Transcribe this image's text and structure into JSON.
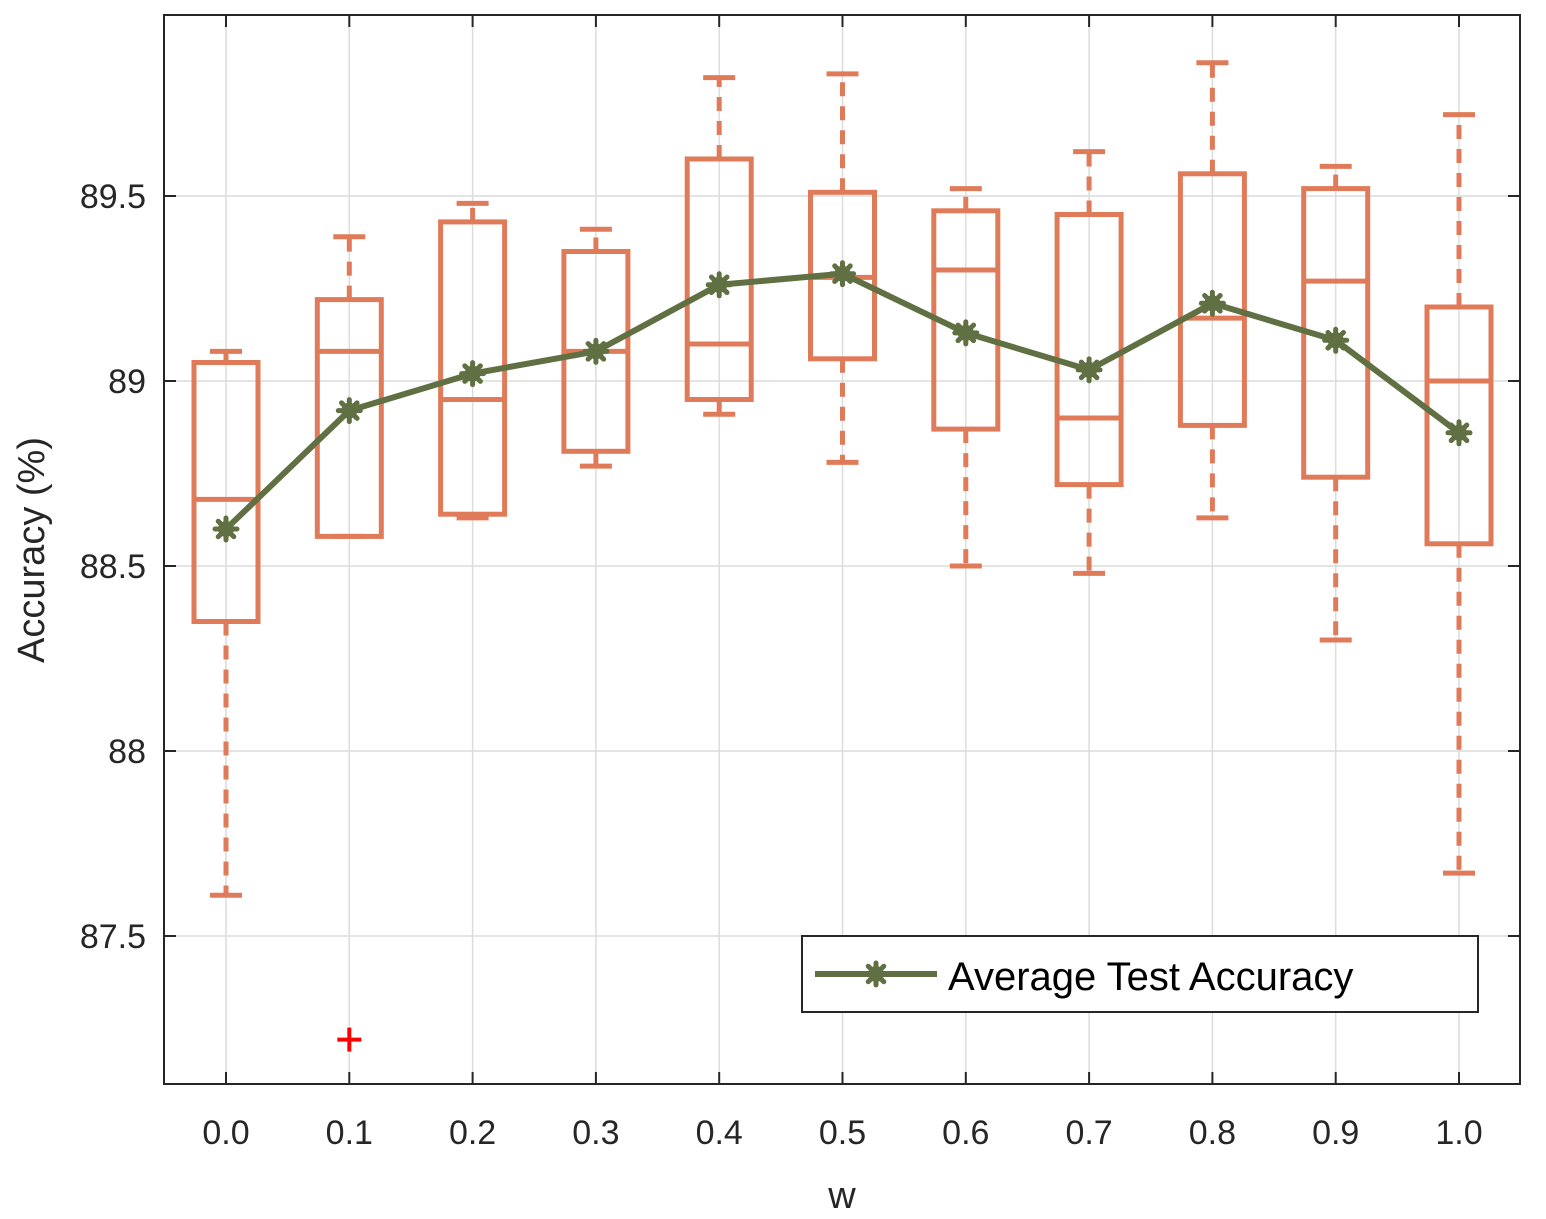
{
  "chart_data": {
    "type": "box",
    "xlabel": "w",
    "ylabel": "Accuracy (%)",
    "categories": [
      "0.0",
      "0.1",
      "0.2",
      "0.3",
      "0.4",
      "0.5",
      "0.6",
      "0.7",
      "0.8",
      "0.9",
      "1.0"
    ],
    "ylim": [
      87.13,
      90.0
    ],
    "yticks": [
      87.5,
      88,
      88.5,
      89,
      89.5
    ],
    "ytick_labels": [
      "87.5",
      "88",
      "88.5",
      "89",
      "89.5"
    ],
    "grid": true,
    "boxes": [
      {
        "category": "0.0",
        "whisker_low": 87.61,
        "q1": 88.35,
        "median": 88.68,
        "q3": 89.05,
        "whisker_high": 89.08,
        "outliers": []
      },
      {
        "category": "0.1",
        "whisker_low": 88.58,
        "q1": 88.58,
        "median": 89.08,
        "q3": 89.22,
        "whisker_high": 89.39,
        "outliers": [
          87.22
        ]
      },
      {
        "category": "0.2",
        "whisker_low": 88.63,
        "q1": 88.64,
        "median": 88.95,
        "q3": 89.43,
        "whisker_high": 89.48,
        "outliers": []
      },
      {
        "category": "0.3",
        "whisker_low": 88.77,
        "q1": 88.81,
        "median": 89.08,
        "q3": 89.35,
        "whisker_high": 89.41,
        "outliers": []
      },
      {
        "category": "0.4",
        "whisker_low": 88.91,
        "q1": 88.95,
        "median": 89.1,
        "q3": 89.6,
        "whisker_high": 89.82,
        "outliers": []
      },
      {
        "category": "0.5",
        "whisker_low": 88.78,
        "q1": 89.06,
        "median": 89.28,
        "q3": 89.51,
        "whisker_high": 89.83,
        "outliers": []
      },
      {
        "category": "0.6",
        "whisker_low": 88.5,
        "q1": 88.87,
        "median": 89.3,
        "q3": 89.46,
        "whisker_high": 89.52,
        "outliers": []
      },
      {
        "category": "0.7",
        "whisker_low": 88.48,
        "q1": 88.72,
        "median": 88.9,
        "q3": 89.45,
        "whisker_high": 89.62,
        "outliers": []
      },
      {
        "category": "0.8",
        "whisker_low": 88.63,
        "q1": 88.88,
        "median": 89.17,
        "q3": 89.56,
        "whisker_high": 89.86,
        "outliers": []
      },
      {
        "category": "0.9",
        "whisker_low": 88.3,
        "q1": 88.74,
        "median": 89.27,
        "q3": 89.52,
        "whisker_high": 89.58,
        "outliers": []
      },
      {
        "category": "1.0",
        "whisker_low": 87.67,
        "q1": 88.56,
        "median": 89.0,
        "q3": 89.2,
        "whisker_high": 89.72,
        "outliers": []
      }
    ],
    "series": [
      {
        "name": "Average Test Accuracy",
        "type": "line",
        "marker": "star",
        "values": [
          88.6,
          88.92,
          89.02,
          89.08,
          89.26,
          89.29,
          89.13,
          89.03,
          89.21,
          89.11,
          88.86
        ]
      }
    ],
    "legend": {
      "position": "bottom-right"
    },
    "colors": {
      "box": "#e07b5a",
      "line": "#607043",
      "outlier": "#ff0000",
      "grid": "#dcdcdc",
      "axis": "#262626"
    }
  }
}
